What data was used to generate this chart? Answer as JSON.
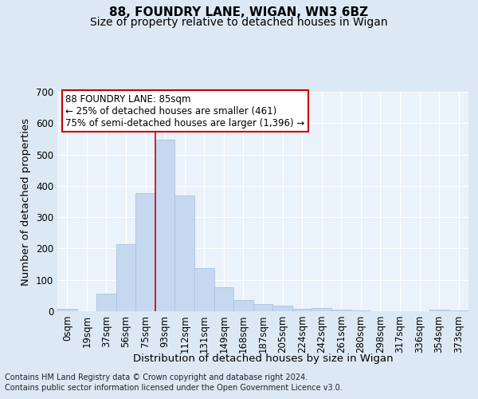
{
  "title_line1": "88, FOUNDRY LANE, WIGAN, WN3 6BZ",
  "title_line2": "Size of property relative to detached houses in Wigan",
  "xlabel": "Distribution of detached houses by size in Wigan",
  "ylabel": "Number of detached properties",
  "footer_line1": "Contains HM Land Registry data © Crown copyright and database right 2024.",
  "footer_line2": "Contains public sector information licensed under the Open Government Licence v3.0.",
  "categories": [
    "0sqm",
    "19sqm",
    "37sqm",
    "56sqm",
    "75sqm",
    "93sqm",
    "112sqm",
    "131sqm",
    "149sqm",
    "168sqm",
    "187sqm",
    "205sqm",
    "224sqm",
    "242sqm",
    "261sqm",
    "280sqm",
    "298sqm",
    "317sqm",
    "336sqm",
    "354sqm",
    "373sqm"
  ],
  "values": [
    7,
    0,
    57,
    213,
    377,
    548,
    370,
    137,
    77,
    36,
    22,
    17,
    7,
    10,
    5,
    3,
    0,
    1,
    0,
    5,
    3
  ],
  "bar_color": "#c5d8ef",
  "bar_edge_color": "#aac4e0",
  "vline_x": 4.5,
  "vline_color": "#cc0000",
  "annotation_text": "88 FOUNDRY LANE: 85sqm\n← 25% of detached houses are smaller (461)\n75% of semi-detached houses are larger (1,396) →",
  "annotation_box_color": "#ffffff",
  "annotation_box_edge": "#cc0000",
  "ylim": [
    0,
    700
  ],
  "yticks": [
    0,
    100,
    200,
    300,
    400,
    500,
    600,
    700
  ],
  "bg_color": "#dce9f5",
  "plot_bg_color": "#eaf2fb",
  "grid_color": "#ffffff",
  "title_fontsize": 11,
  "subtitle_fontsize": 10,
  "axis_label_fontsize": 9.5,
  "tick_fontsize": 8.5,
  "footer_fontsize": 7
}
